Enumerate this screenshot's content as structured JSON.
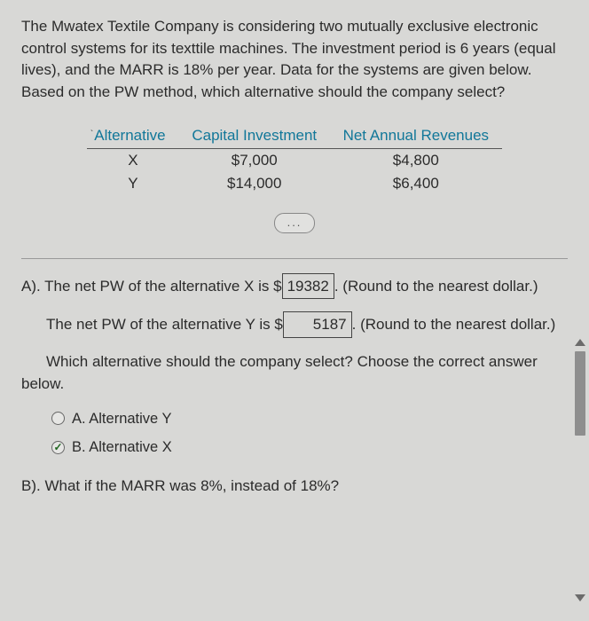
{
  "question": "The Mwatex Textile Company is considering two mutually exclusive electronic control systems for its texttile machines. The investment period is 6 years (equal lives), and the MARR is 18% per year. Data for the systems are given below. Based on the PW method, which alternative should the company select?",
  "table": {
    "headers": {
      "alt": "Alternative",
      "cap": "Capital Investment",
      "rev": "Net Annual Revenues"
    },
    "rows": [
      {
        "alt": "X",
        "cap": "$7,000",
        "rev": "$4,800"
      },
      {
        "alt": "Y",
        "cap": "$14,000",
        "rev": "$6,400"
      }
    ]
  },
  "ellipsis": "...",
  "partA": {
    "line1_pre": "A). The net PW of the alternative X is $",
    "val_x": "19382",
    "line1_post": ". (Round to the nearest dollar.)",
    "line2_pre": "The net PW of the alternative Y is $",
    "val_y": "5187",
    "line2_post": ". (Round to the nearest dollar.)",
    "chooseText": "Which alternative should the company select? Choose the correct answer below.",
    "options": {
      "a": "A.   Alternative Y",
      "b": "B.   Alternative X"
    }
  },
  "partB": "B). What if the MARR was 8%, instead of 18%?"
}
